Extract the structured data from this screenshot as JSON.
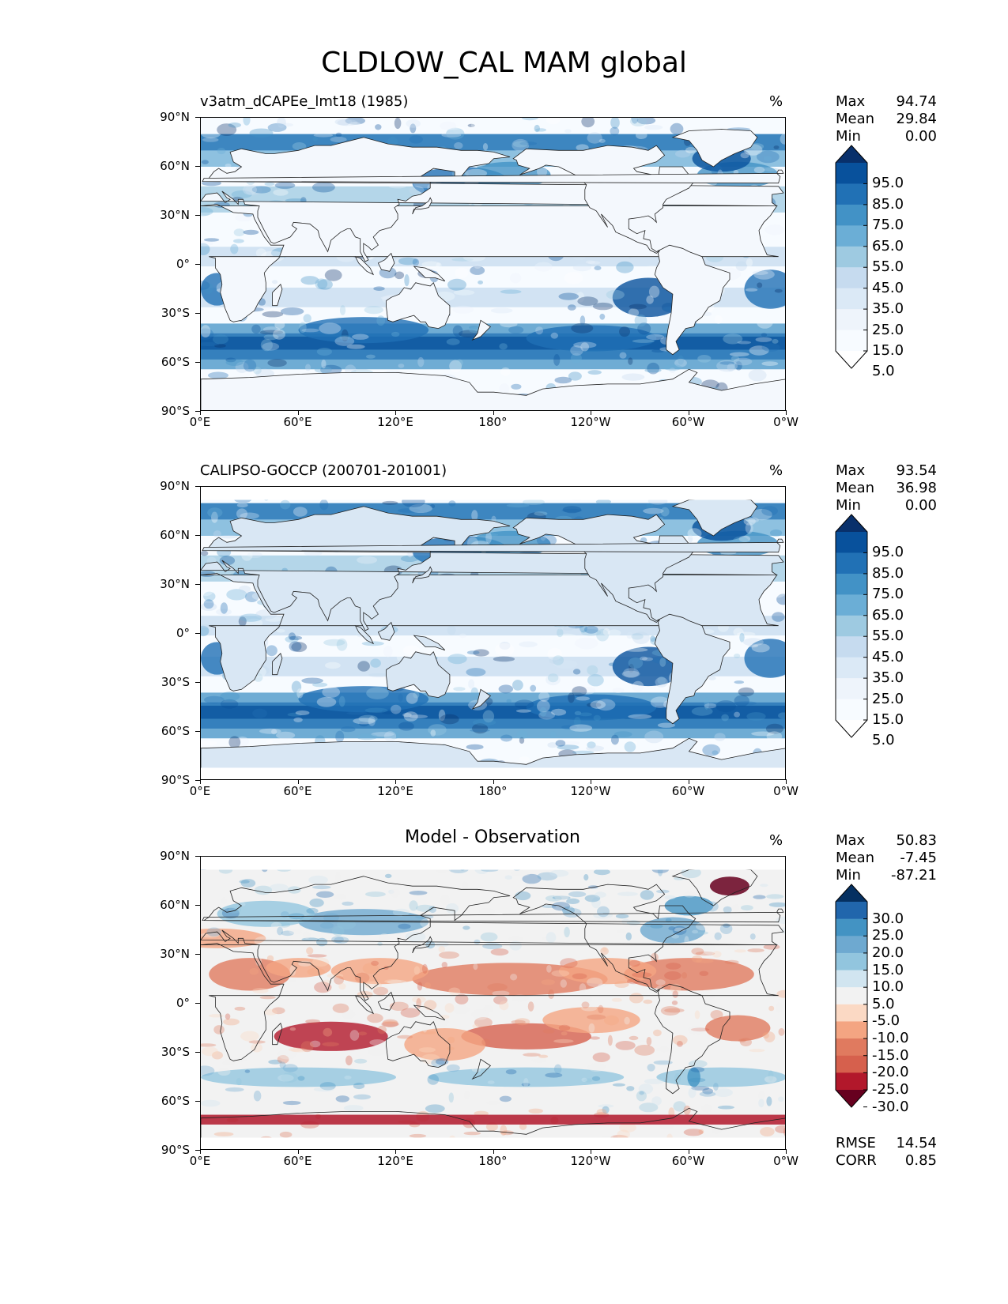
{
  "figure": {
    "title": "CLDLOW_CAL MAM global"
  },
  "axes": {
    "lat_labels": [
      "90°N",
      "60°N",
      "30°N",
      "0°",
      "30°S",
      "60°S",
      "90°S"
    ],
    "lon_labels": [
      "0°E",
      "60°E",
      "120°E",
      "180°",
      "120°W",
      "60°W",
      "0°W"
    ]
  },
  "panels": [
    {
      "id": "model",
      "left_title": "v3atm_dCAPEe_lmt18 (1985)",
      "center_title": "",
      "units": "%",
      "stats": {
        "max_label": "Max",
        "max": "94.74",
        "mean_label": "Mean",
        "mean": "29.84",
        "min_label": "Min",
        "min": "0.00"
      },
      "colorbar": {
        "labels": [
          "95.0",
          "85.0",
          "75.0",
          "65.0",
          "55.0",
          "45.0",
          "35.0",
          "25.0",
          "15.0",
          "5.0"
        ],
        "colors": [
          "#08306b",
          "#08519c",
          "#2171b5",
          "#4292c6",
          "#6baed6",
          "#9ecae1",
          "#c6dbef",
          "#dbe9f6",
          "#eef4fb",
          "#f7fbff",
          "#ffffff"
        ]
      }
    },
    {
      "id": "obs",
      "left_title": "CALIPSO-GOCCP (200701-201001)",
      "center_title": "",
      "units": "%",
      "stats": {
        "max_label": "Max",
        "max": "93.54",
        "mean_label": "Mean",
        "mean": "36.98",
        "min_label": "Min",
        "min": "0.00"
      },
      "colorbar": {
        "labels": [
          "95.0",
          "85.0",
          "75.0",
          "65.0",
          "55.0",
          "45.0",
          "35.0",
          "25.0",
          "15.0",
          "5.0"
        ],
        "colors": [
          "#08306b",
          "#08519c",
          "#2171b5",
          "#4292c6",
          "#6baed6",
          "#9ecae1",
          "#c6dbef",
          "#dbe9f6",
          "#eef4fb",
          "#f7fbff",
          "#ffffff"
        ]
      }
    },
    {
      "id": "diff",
      "left_title": "",
      "center_title": "Model - Observation",
      "units": "%",
      "stats": {
        "max_label": "Max",
        "max": "50.83",
        "mean_label": "Mean",
        "mean": "-7.45",
        "min_label": "Min",
        "min": "-87.21"
      },
      "extra_stats": {
        "rmse_label": "RMSE",
        "rmse": "14.54",
        "corr_label": "CORR",
        "corr": "0.85"
      },
      "colorbar": {
        "labels": [
          "30.0",
          "25.0",
          "20.0",
          "15.0",
          "10.0",
          "5.0",
          "-5.0",
          "-10.0",
          "-15.0",
          "-20.0",
          "-25.0",
          "-30.0"
        ],
        "colors": [
          "#053061",
          "#2166ac",
          "#4393c3",
          "#6ea9d0",
          "#92c5de",
          "#d1e5f0",
          "#f2f2f2",
          "#fbd9c4",
          "#f4a582",
          "#e07a5f",
          "#d6604d",
          "#b2182b",
          "#67001f"
        ]
      }
    }
  ],
  "chart_data": {
    "type": "heatmap",
    "title": "CLDLOW_CAL MAM global",
    "variable": "CLDLOW_CAL",
    "season": "MAM",
    "region": "global",
    "units": "%",
    "x_axis": {
      "range": [
        0,
        360
      ],
      "tick_labels": [
        "0°E",
        "60°E",
        "120°E",
        "180°",
        "120°W",
        "60°W",
        "0°W"
      ]
    },
    "y_axis": {
      "range": [
        -90,
        90
      ],
      "tick_labels": [
        "90°N",
        "60°N",
        "30°N",
        "0°",
        "30°S",
        "60°S",
        "90°S"
      ]
    },
    "panels": [
      {
        "name": "v3atm_dCAPEe_lmt18 (1985)",
        "max": 94.74,
        "mean": 29.84,
        "min": 0.0,
        "levels": [
          5,
          15,
          25,
          35,
          45,
          55,
          65,
          75,
          85,
          95
        ]
      },
      {
        "name": "CALIPSO-GOCCP (200701-201001)",
        "max": 93.54,
        "mean": 36.98,
        "min": 0.0,
        "levels": [
          5,
          15,
          25,
          35,
          45,
          55,
          65,
          75,
          85,
          95
        ]
      },
      {
        "name": "Model - Observation",
        "max": 50.83,
        "mean": -7.45,
        "min": -87.21,
        "rmse": 14.54,
        "corr": 0.85,
        "levels": [
          -30,
          -25,
          -20,
          -15,
          -10,
          -5,
          5,
          10,
          15,
          20,
          25,
          30
        ]
      }
    ]
  }
}
